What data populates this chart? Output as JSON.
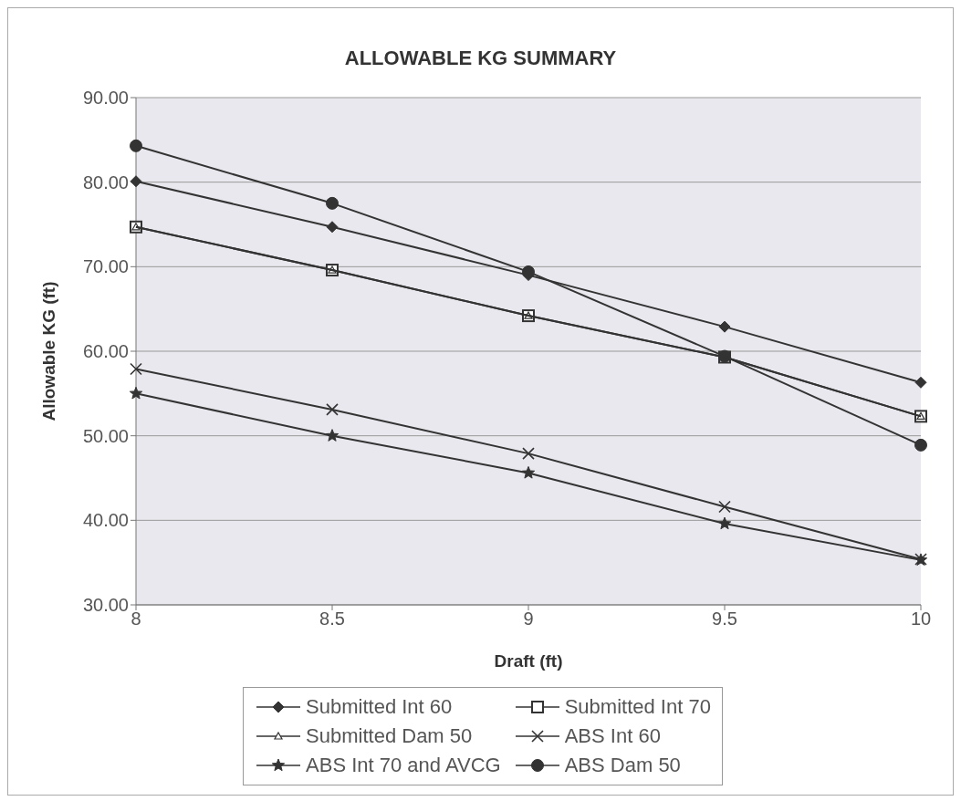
{
  "chart_data": {
    "type": "line",
    "title": "ALLOWABLE KG SUMMARY",
    "xlabel": "Draft (ft)",
    "ylabel": "Allowable KG (ft)",
    "x": [
      8,
      8.5,
      9,
      9.5,
      10
    ],
    "xlim": [
      8,
      10
    ],
    "xticks": [
      8,
      8.5,
      9,
      9.5,
      10
    ],
    "ylim": [
      30,
      90
    ],
    "yticks": [
      {
        "value": 30,
        "label": "30.00"
      },
      {
        "value": 40,
        "label": "40.00"
      },
      {
        "value": 50,
        "label": "50.00"
      },
      {
        "value": 60,
        "label": "60.00"
      },
      {
        "value": 70,
        "label": "70.00"
      },
      {
        "value": 80,
        "label": "80.00"
      },
      {
        "value": 90,
        "label": "90.00"
      }
    ],
    "grid": "y",
    "legend": "bottom",
    "line_style": "solid",
    "series": [
      {
        "name": "Submitted Int 60",
        "color": "#333333",
        "marker": "diamond",
        "values": [
          80.1,
          74.7,
          69.0,
          62.9,
          56.3
        ]
      },
      {
        "name": "Submitted Int 70",
        "color": "#333333",
        "marker": "square",
        "values": [
          74.7,
          69.6,
          64.2,
          59.3,
          52.3
        ]
      },
      {
        "name": "Submitted Dam 50",
        "color": "#333333",
        "marker": "triangle",
        "values": [
          74.7,
          69.6,
          64.2,
          59.3,
          52.3
        ]
      },
      {
        "name": "ABS Int 60",
        "color": "#333333",
        "marker": "cross",
        "values": [
          57.9,
          53.1,
          47.9,
          41.6,
          35.4
        ]
      },
      {
        "name": "ABS Int 70 and AVCG",
        "color": "#333333",
        "marker": "star",
        "values": [
          55.0,
          50.0,
          45.6,
          39.6,
          35.3
        ]
      },
      {
        "name": "ABS Dam 50",
        "color": "#333333",
        "marker": "circle",
        "values": [
          84.3,
          77.5,
          69.4,
          59.4,
          48.9
        ]
      }
    ]
  }
}
